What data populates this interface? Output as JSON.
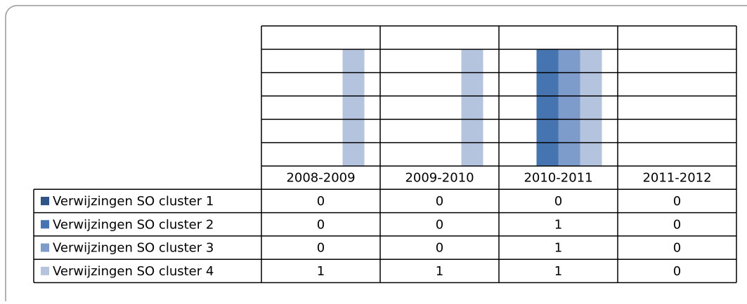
{
  "chart_data": {
    "type": "bar",
    "categories": [
      "2008-2009",
      "2009-2010",
      "2010-2011",
      "2011-2012"
    ],
    "series": [
      {
        "name": "Verwijzingen SO cluster 1",
        "color": "#2f5487",
        "values": [
          0,
          0,
          0,
          0
        ]
      },
      {
        "name": "Verwijzingen SO cluster 2",
        "color": "#4674b0",
        "values": [
          0,
          0,
          1,
          0
        ]
      },
      {
        "name": "Verwijzingen SO cluster 3",
        "color": "#7d9bcb",
        "values": [
          0,
          0,
          1,
          0
        ]
      },
      {
        "name": "Verwijzingen SO cluster 4",
        "color": "#b4c3de",
        "values": [
          1,
          1,
          1,
          0
        ]
      }
    ],
    "ylim": [
      0,
      1.2
    ],
    "yticks": [
      0,
      0.2,
      0.4,
      0.6,
      0.8,
      1,
      1.2
    ],
    "grid": true,
    "data_table": true
  }
}
